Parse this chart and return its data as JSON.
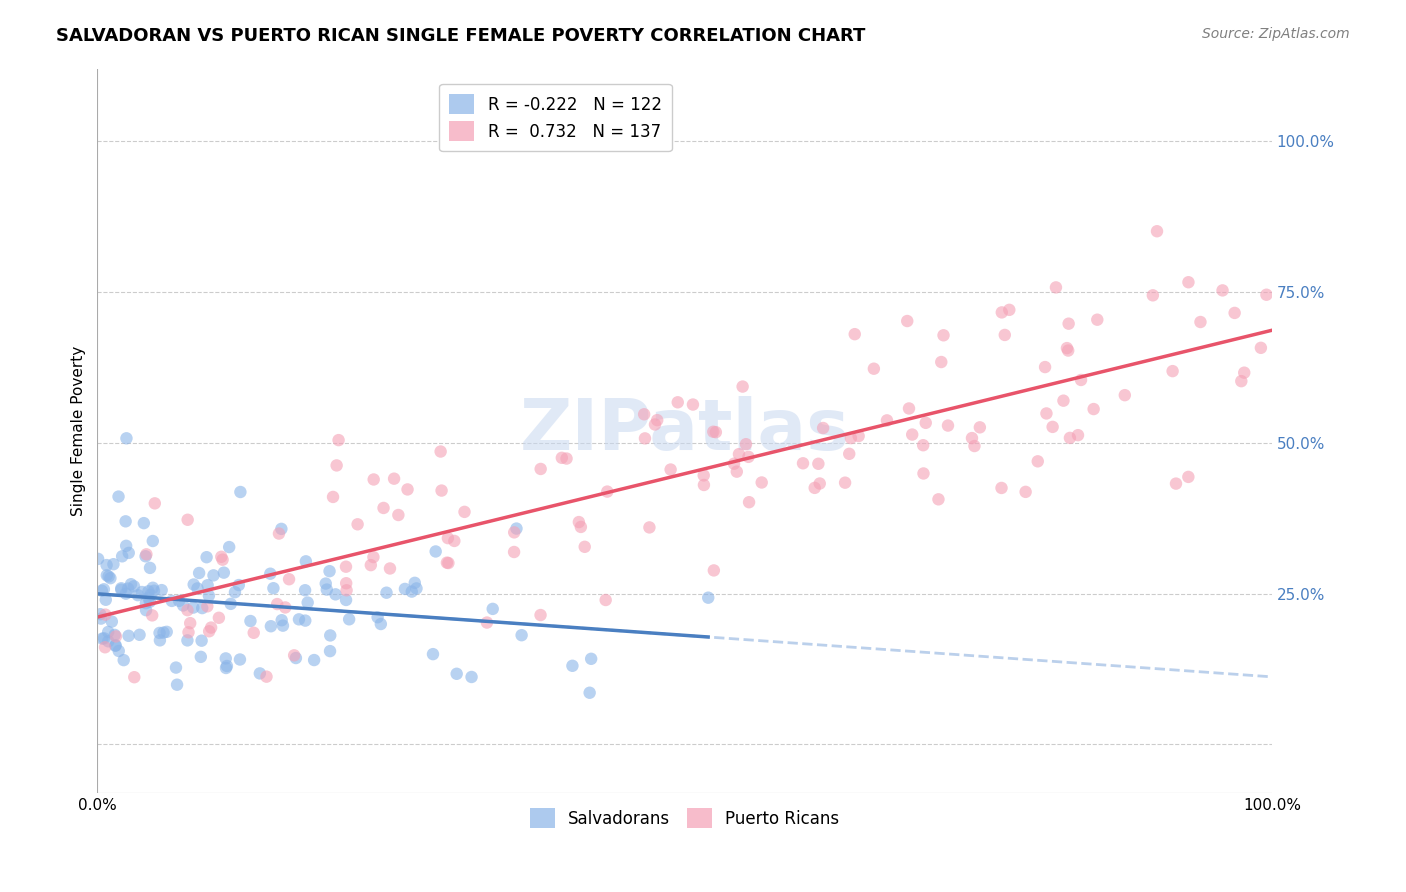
{
  "title": "SALVADORAN VS PUERTO RICAN SINGLE FEMALE POVERTY CORRELATION CHART",
  "source": "Source: ZipAtlas.com",
  "ylabel": "Single Female Poverty",
  "xlim": [
    0.0,
    1.0
  ],
  "ylim": [
    -0.08,
    1.12
  ],
  "watermark": "ZIPatlas",
  "salvadoran_color": "#8ab4e8",
  "puerto_rican_color": "#f4a0b5",
  "salvadoran_line_color": "#4a7fc1",
  "puerto_rican_line_color": "#e8546a",
  "salvadoran_dash_color": "#b0c8e8",
  "legend_salvadoran_R": "-0.222",
  "legend_salvadoran_N": "122",
  "legend_puerto_rican_R": "0.732",
  "legend_puerto_rican_N": "137",
  "title_fontsize": 13,
  "source_fontsize": 10,
  "axis_label_fontsize": 11,
  "tick_fontsize": 11,
  "legend_fontsize": 12,
  "right_tick_color": "#4a7fc1",
  "background_color": "#ffffff",
  "grid_color": "#cccccc",
  "salvadoran_seed": 42,
  "puerto_rican_seed": 99
}
